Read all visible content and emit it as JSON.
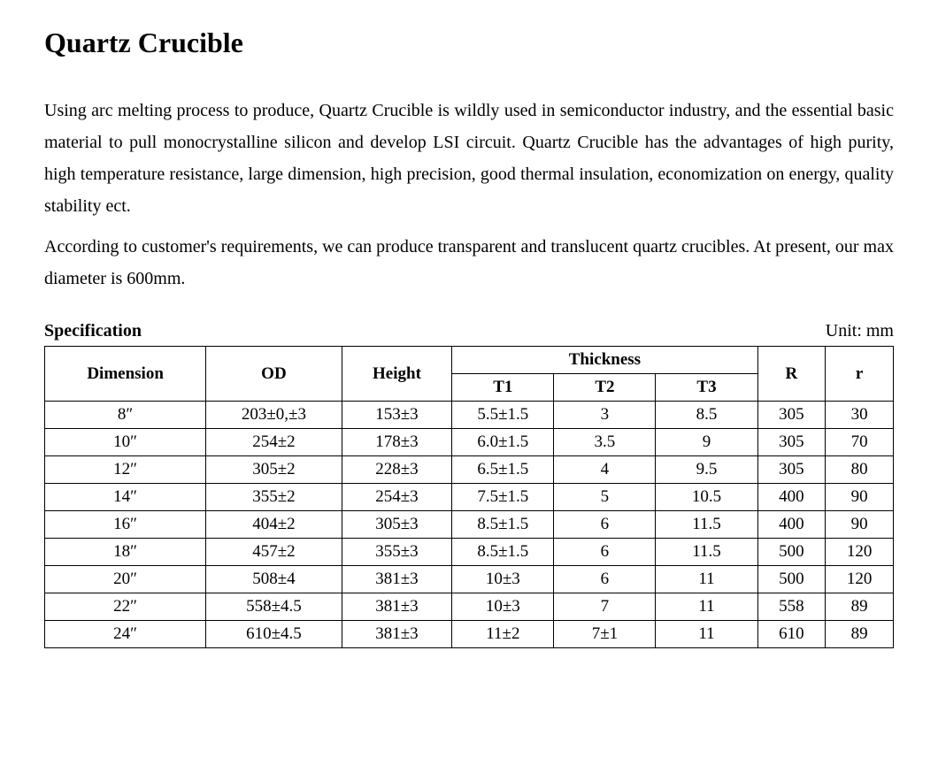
{
  "title": "Quartz Crucible",
  "paragraph1": "Using arc melting process to produce, Quartz Crucible is wildly used in semiconductor industry, and the essential basic material to pull monocrystalline silicon and develop LSI circuit. Quartz Crucible has the advantages of high purity, high temperature resistance, large dimension, high precision, good thermal insulation, economization on energy, quality stability ect.",
  "paragraph2": "According to customer's requirements, we can produce transparent and translucent quartz crucibles. At present, our max diameter is 600mm.",
  "spec_label": "Specification",
  "unit_label": "Unit: mm",
  "table": {
    "headers": {
      "dimension": "Dimension",
      "od": "OD",
      "height": "Height",
      "thickness": "Thickness",
      "t1": "T1",
      "t2": "T2",
      "t3": "T3",
      "r_upper": "R",
      "r_lower": "r"
    },
    "rows": [
      {
        "dim": "8″",
        "od": "203±0,±3",
        "height": "153±3",
        "t1": "5.5±1.5",
        "t2": "3",
        "t3": "8.5",
        "r1": "305",
        "r2": "30"
      },
      {
        "dim": "10″",
        "od": "254±2",
        "height": "178±3",
        "t1": "6.0±1.5",
        "t2": "3.5",
        "t3": "9",
        "r1": "305",
        "r2": "70"
      },
      {
        "dim": "12″",
        "od": "305±2",
        "height": "228±3",
        "t1": "6.5±1.5",
        "t2": "4",
        "t3": "9.5",
        "r1": "305",
        "r2": "80"
      },
      {
        "dim": "14″",
        "od": "355±2",
        "height": "254±3",
        "t1": "7.5±1.5",
        "t2": "5",
        "t3": "10.5",
        "r1": "400",
        "r2": "90"
      },
      {
        "dim": "16″",
        "od": "404±2",
        "height": "305±3",
        "t1": "8.5±1.5",
        "t2": "6",
        "t3": "11.5",
        "r1": "400",
        "r2": "90"
      },
      {
        "dim": "18″",
        "od": "457±2",
        "height": "355±3",
        "t1": "8.5±1.5",
        "t2": "6",
        "t3": "11.5",
        "r1": "500",
        "r2": "120"
      },
      {
        "dim": "20″",
        "od": "508±4",
        "height": "381±3",
        "t1": "10±3",
        "t2": "6",
        "t3": "11",
        "r1": "500",
        "r2": "120"
      },
      {
        "dim": "22″",
        "od": "558±4.5",
        "height": "381±3",
        "t1": "10±3",
        "t2": "7",
        "t3": "11",
        "r1": "558",
        "r2": "89"
      },
      {
        "dim": "24″",
        "od": "610±4.5",
        "height": "381±3",
        "t1": "11±2",
        "t2": "7±1",
        "t3": "11",
        "r1": "610",
        "r2": "89"
      }
    ]
  },
  "styling": {
    "background_color": "#ffffff",
    "text_color": "#000000",
    "border_color": "#000000",
    "title_fontsize": 32,
    "body_fontsize": 20,
    "table_fontsize": 19,
    "font_family": "Times New Roman"
  }
}
